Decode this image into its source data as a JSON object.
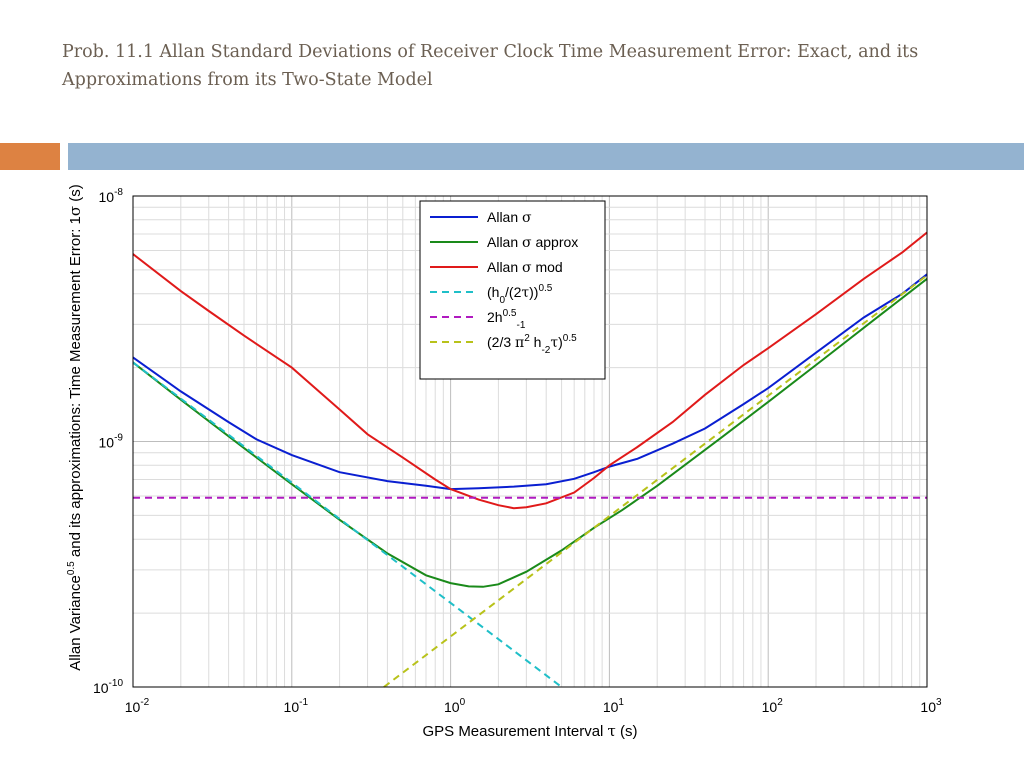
{
  "slide": {
    "title_line1": "Prob. 11.1 Allan Standard Deviations of  Receiver Clock Time Measurement Error: Exact, and its",
    "title_line2": "Approximations from its Two-State Model"
  },
  "colors": {
    "title_text": "#6b5f52",
    "accent_orange": "#dd8242",
    "accent_blue": "#94b3d0",
    "series_allan": "#0a1fd1",
    "series_approx": "#1a8a1a",
    "series_mod": "#e01a1a",
    "series_white": "#1fbfc8",
    "series_flicker": "#b01ac0",
    "series_rw": "#b8c21a"
  },
  "chart_data": {
    "type": "line",
    "log_x": true,
    "log_y": true,
    "xlim": [
      0.01,
      1000
    ],
    "ylim": [
      1e-10,
      1e-08
    ],
    "grid": true,
    "legend_position": "top-center",
    "xlabel": "GPS Measurement Interval τ (s)",
    "ylabel": "Allan Variance0.5 and its approximations: Time Measurement Error: 1σ (s)",
    "x_ticks": [
      "10^-2",
      "10^-1",
      "10^0",
      "10^1",
      "10^2",
      "10^3"
    ],
    "y_ticks": [
      "10^-10",
      "10^-9",
      "10^-8"
    ],
    "legend": [
      {
        "key": "allan",
        "parts": [
          {
            "t": "Allan "
          },
          {
            "t": "σ",
            "serif": true
          }
        ]
      },
      {
        "key": "approx",
        "parts": [
          {
            "t": "Allan "
          },
          {
            "t": "σ",
            "serif": true
          },
          {
            "t": " approx"
          }
        ]
      },
      {
        "key": "mod",
        "parts": [
          {
            "t": "Allan "
          },
          {
            "t": "σ",
            "serif": true
          },
          {
            "t": " mod"
          }
        ]
      },
      {
        "key": "white",
        "parts": [
          {
            "t": "(h"
          },
          {
            "t": "0",
            "sub": true
          },
          {
            "t": "/(2"
          },
          {
            "t": "τ",
            "serif": true
          },
          {
            "t": "))"
          },
          {
            "t": "0.5",
            "sup": true
          }
        ]
      },
      {
        "key": "flicker",
        "parts": [
          {
            "t": "2h"
          },
          {
            "t": "0.5",
            "sup": true
          },
          {
            "t": "-1",
            "sub": true
          }
        ]
      },
      {
        "key": "rw",
        "parts": [
          {
            "t": "(2/3 "
          },
          {
            "t": "π",
            "serif": true
          },
          {
            "t": "2",
            "sup": true
          },
          {
            "t": " h"
          },
          {
            "t": "-2",
            "sub": true
          },
          {
            "t": "τ",
            "serif": true
          },
          {
            "t": ")"
          },
          {
            "t": "0.5",
            "sup": true
          }
        ]
      }
    ],
    "series": [
      {
        "key": "allan",
        "dashed": false,
        "x": [
          0.01,
          0.02,
          0.04,
          0.06,
          0.1,
          0.2,
          0.4,
          0.7,
          1.0,
          1.5,
          2.5,
          4.0,
          6.0,
          8.0,
          10,
          15,
          25,
          40,
          70,
          100,
          200,
          400,
          700,
          1000
        ],
        "y": [
          2.2e-09,
          1.6e-09,
          1.2e-09,
          1.02e-09,
          8.8e-10,
          7.5e-10,
          6.9e-10,
          6.6e-10,
          6.4e-10,
          6.45e-10,
          6.55e-10,
          6.7e-10,
          7.05e-10,
          7.5e-10,
          7.9e-10,
          8.5e-10,
          9.8e-10,
          1.13e-09,
          1.42e-09,
          1.65e-09,
          2.3e-09,
          3.2e-09,
          4e-09,
          4.8e-09
        ]
      },
      {
        "key": "approx",
        "dashed": false,
        "x": [
          0.01,
          0.02,
          0.05,
          0.1,
          0.2,
          0.4,
          0.7,
          1.0,
          1.3,
          1.6,
          2.0,
          3.0,
          5.0,
          8.0,
          12,
          20,
          50,
          100,
          200,
          500,
          1000
        ],
        "y": [
          2.1e-09,
          1.48e-09,
          9.4e-10,
          6.7e-10,
          4.8e-10,
          3.5e-10,
          2.85e-10,
          2.65e-10,
          2.57e-10,
          2.56e-10,
          2.62e-10,
          2.95e-10,
          3.6e-10,
          4.45e-10,
          5.25e-10,
          6.6e-10,
          1.03e-09,
          1.45e-09,
          2.05e-09,
          3.25e-09,
          4.6e-09
        ]
      },
      {
        "key": "mod",
        "dashed": false,
        "x": [
          0.01,
          0.02,
          0.03,
          0.05,
          0.1,
          0.2,
          0.3,
          0.5,
          0.8,
          1.0,
          1.5,
          2.0,
          2.5,
          3.0,
          4.0,
          6.0,
          8.0,
          10,
          15,
          25,
          40,
          70,
          100,
          200,
          400,
          700,
          1000
        ],
        "y": [
          5.8e-09,
          4.1e-09,
          3.4e-09,
          2.7e-09,
          2e-09,
          1.35e-09,
          1.07e-09,
          8.6e-10,
          7e-10,
          6.4e-10,
          5.8e-10,
          5.5e-10,
          5.35e-10,
          5.4e-10,
          5.6e-10,
          6.2e-10,
          7.1e-10,
          8e-10,
          9.5e-10,
          1.2e-09,
          1.55e-09,
          2.05e-09,
          2.4e-09,
          3.3e-09,
          4.6e-09,
          5.9e-09,
          7.1e-09
        ]
      },
      {
        "key": "white",
        "dashed": true,
        "x": [
          0.01,
          5.0
        ],
        "y": [
          2.1e-09,
          1e-10
        ]
      },
      {
        "key": "flicker",
        "dashed": true,
        "x": [
          0.01,
          1000
        ],
        "y": [
          5.9e-10,
          5.9e-10
        ]
      },
      {
        "key": "rw",
        "dashed": true,
        "x": [
          0.38,
          1000
        ],
        "y": [
          1e-10,
          4.75e-09
        ]
      }
    ]
  }
}
